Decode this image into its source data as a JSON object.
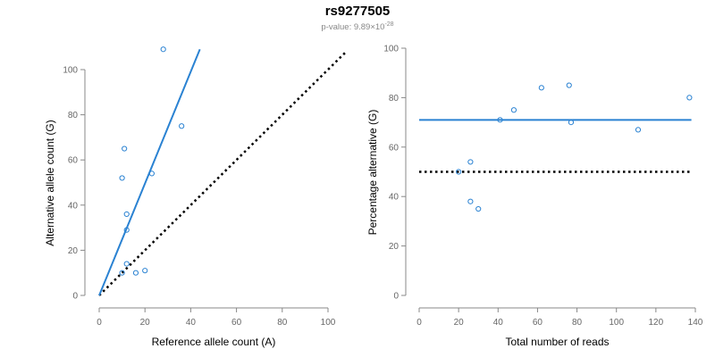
{
  "header": {
    "title": "rs9277505",
    "pvalue_prefix": "p-value: 9.89×10",
    "pvalue_exp": "-28"
  },
  "colors": {
    "points": "#2a82d2",
    "fit": "#2a82d2",
    "reference": "#000000",
    "axis": "#888888"
  },
  "chart_data": [
    {
      "type": "scatter",
      "xlabel": "Reference allele count (A)",
      "ylabel": "Alternative allele count (G)",
      "xlim": [
        0,
        100
      ],
      "ylim": [
        0,
        100
      ],
      "xticks": [
        0,
        20,
        40,
        60,
        80,
        100
      ],
      "yticks": [
        0,
        20,
        40,
        60,
        80,
        100
      ],
      "points": [
        {
          "x": 28,
          "y": 109
        },
        {
          "x": 36,
          "y": 75
        },
        {
          "x": 11,
          "y": 65
        },
        {
          "x": 23,
          "y": 54
        },
        {
          "x": 10,
          "y": 52
        },
        {
          "x": 12,
          "y": 36
        },
        {
          "x": 12,
          "y": 29
        },
        {
          "x": 12,
          "y": 14
        },
        {
          "x": 20,
          "y": 11
        },
        {
          "x": 16,
          "y": 10
        },
        {
          "x": 10,
          "y": 10
        }
      ],
      "fit_line": {
        "x0": 0,
        "y0": 0,
        "x1": 44,
        "y1": 109
      },
      "reference_line": {
        "x0": 0,
        "y0": 0,
        "x1": 108,
        "y1": 108
      }
    },
    {
      "type": "scatter",
      "xlabel": "Total number of reads",
      "ylabel": "Percentage alternative (G)",
      "xlim": [
        0,
        140
      ],
      "ylim": [
        0,
        100
      ],
      "xticks": [
        0,
        20,
        40,
        60,
        80,
        100,
        120,
        140
      ],
      "yticks": [
        0,
        20,
        40,
        60,
        80,
        100
      ],
      "points": [
        {
          "x": 76,
          "y": 85
        },
        {
          "x": 62,
          "y": 84
        },
        {
          "x": 137,
          "y": 80
        },
        {
          "x": 48,
          "y": 75
        },
        {
          "x": 41,
          "y": 71
        },
        {
          "x": 77,
          "y": 70
        },
        {
          "x": 111,
          "y": 67
        },
        {
          "x": 26,
          "y": 54
        },
        {
          "x": 20,
          "y": 50
        },
        {
          "x": 26,
          "y": 38
        },
        {
          "x": 30,
          "y": 35
        }
      ],
      "fit_line": {
        "x0": 0,
        "y0": 71,
        "x1": 138,
        "y1": 71
      },
      "reference_line": {
        "x0": 0,
        "y0": 50,
        "x1": 138,
        "y1": 50
      }
    }
  ]
}
